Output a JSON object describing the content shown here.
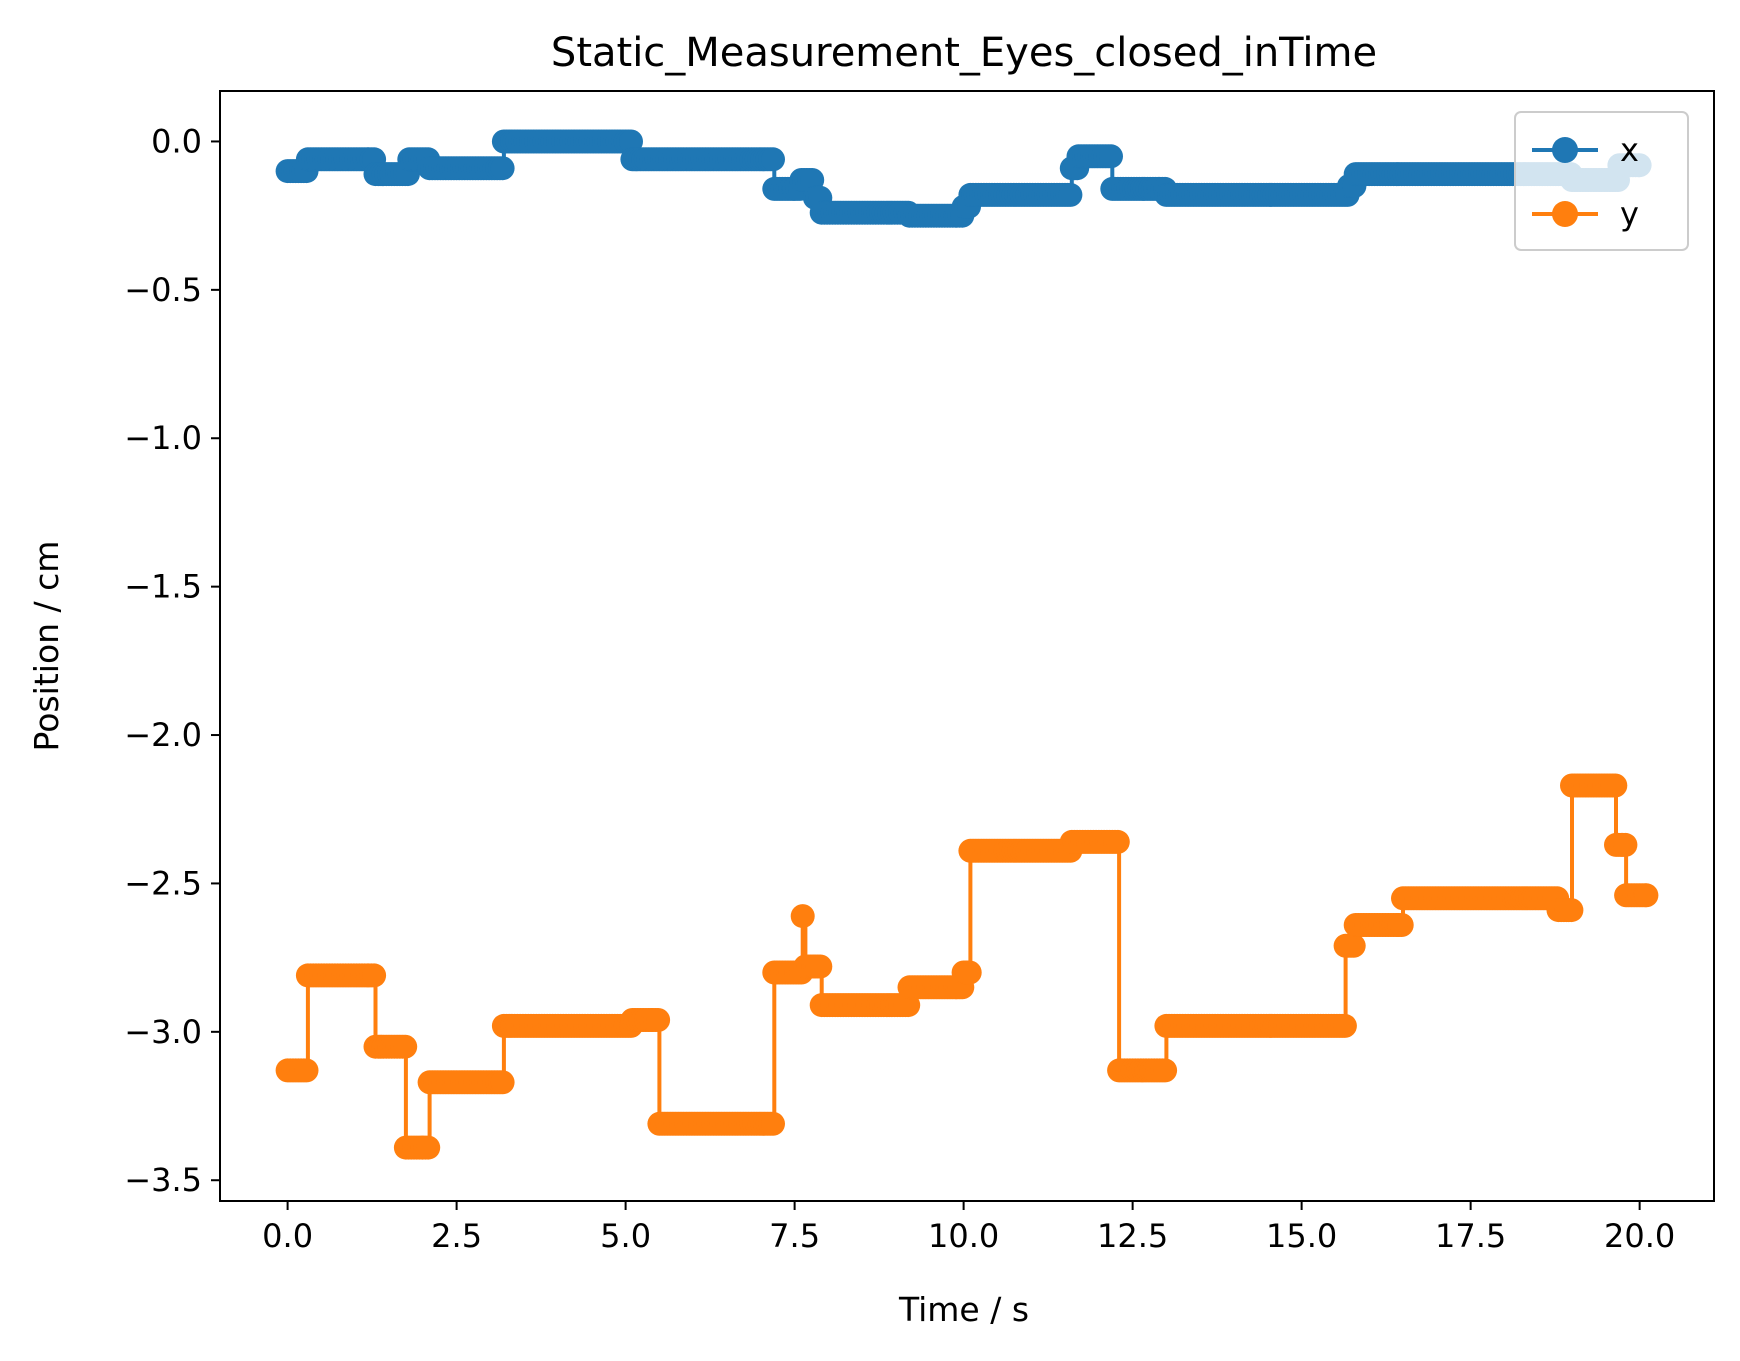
{
  "chart_data": {
    "type": "line",
    "title": "Static_Measurement_Eyes_closed_inTime",
    "xlabel": "Time / s",
    "ylabel": "Position / cm",
    "xlim": [
      -1.0,
      21.1
    ],
    "ylim": [
      -3.57,
      0.17
    ],
    "xticks": [
      0,
      2.5,
      5,
      7.5,
      10,
      12.5,
      15,
      17.5,
      20
    ],
    "xtick_labels": [
      "0.0",
      "2.5",
      "5.0",
      "7.5",
      "10.0",
      "12.5",
      "15.0",
      "17.5",
      "20.0"
    ],
    "yticks": [
      0,
      -0.5,
      -1.0,
      -1.5,
      -2.0,
      -2.5,
      -3.0,
      -3.5
    ],
    "ytick_labels": [
      "0.0",
      "−0.5",
      "−1.0",
      "−1.5",
      "−2.0",
      "−2.5",
      "−3.0",
      "−3.5"
    ],
    "grid": false,
    "legend_position": "top-right",
    "series": [
      {
        "name": "x",
        "color": "#1f77b4",
        "marker": "circle",
        "steps": [
          [
            0.0,
            -0.1
          ],
          [
            0.2,
            -0.1
          ],
          [
            0.3,
            -0.06
          ],
          [
            1.2,
            -0.06
          ],
          [
            1.3,
            -0.11
          ],
          [
            1.7,
            -0.11
          ],
          [
            1.8,
            -0.06
          ],
          [
            2.0,
            -0.06
          ],
          [
            2.1,
            -0.09
          ],
          [
            3.1,
            -0.09
          ],
          [
            3.2,
            0.0
          ],
          [
            5.0,
            0.0
          ],
          [
            5.1,
            -0.06
          ],
          [
            7.1,
            -0.06
          ],
          [
            7.2,
            -0.16
          ],
          [
            7.5,
            -0.16
          ],
          [
            7.6,
            -0.13
          ],
          [
            7.8,
            -0.19
          ],
          [
            7.9,
            -0.24
          ],
          [
            9.1,
            -0.24
          ],
          [
            9.2,
            -0.25
          ],
          [
            9.9,
            -0.25
          ],
          [
            10.0,
            -0.22
          ],
          [
            10.1,
            -0.18
          ],
          [
            11.5,
            -0.18
          ],
          [
            11.6,
            -0.09
          ],
          [
            11.7,
            -0.05
          ],
          [
            12.1,
            -0.05
          ],
          [
            12.2,
            -0.16
          ],
          [
            12.9,
            -0.16
          ],
          [
            13.0,
            -0.18
          ],
          [
            15.6,
            -0.18
          ],
          [
            15.7,
            -0.15
          ],
          [
            15.8,
            -0.11
          ],
          [
            18.9,
            -0.11
          ],
          [
            19.0,
            -0.13
          ],
          [
            19.6,
            -0.13
          ],
          [
            19.7,
            -0.08
          ],
          [
            20.0,
            -0.08
          ]
        ]
      },
      {
        "name": "y",
        "color": "#ff7f0e",
        "marker": "circle",
        "steps": [
          [
            0.0,
            -3.13
          ],
          [
            0.2,
            -3.13
          ],
          [
            0.3,
            -2.81
          ],
          [
            1.2,
            -2.81
          ],
          [
            1.3,
            -3.05
          ],
          [
            1.7,
            -3.05
          ],
          [
            1.75,
            -3.39
          ],
          [
            1.95,
            -3.39
          ],
          [
            2.0,
            -3.39
          ],
          [
            2.1,
            -3.17
          ],
          [
            3.1,
            -3.17
          ],
          [
            3.2,
            -2.98
          ],
          [
            5.0,
            -2.98
          ],
          [
            5.1,
            -2.96
          ],
          [
            5.4,
            -2.96
          ],
          [
            5.5,
            -3.31
          ],
          [
            7.1,
            -3.31
          ],
          [
            7.2,
            -2.8
          ],
          [
            7.6,
            -2.8
          ],
          [
            7.62,
            -2.61
          ],
          [
            7.66,
            -2.78
          ],
          [
            7.8,
            -2.78
          ],
          [
            7.9,
            -2.91
          ],
          [
            9.1,
            -2.91
          ],
          [
            9.2,
            -2.85
          ],
          [
            9.9,
            -2.85
          ],
          [
            10.0,
            -2.8
          ],
          [
            10.05,
            -2.8
          ],
          [
            10.1,
            -2.39
          ],
          [
            11.5,
            -2.39
          ],
          [
            11.6,
            -2.36
          ],
          [
            12.2,
            -2.36
          ],
          [
            12.3,
            -3.13
          ],
          [
            12.9,
            -3.13
          ],
          [
            13.0,
            -2.98
          ],
          [
            15.6,
            -2.98
          ],
          [
            15.65,
            -2.71
          ],
          [
            15.8,
            -2.64
          ],
          [
            16.4,
            -2.64
          ],
          [
            16.5,
            -2.55
          ],
          [
            18.7,
            -2.55
          ],
          [
            18.8,
            -2.59
          ],
          [
            18.95,
            -2.59
          ],
          [
            19.0,
            -2.17
          ],
          [
            19.6,
            -2.17
          ],
          [
            19.65,
            -2.37
          ],
          [
            19.75,
            -2.37
          ],
          [
            19.8,
            -2.54
          ],
          [
            20.1,
            -2.54
          ]
        ]
      }
    ]
  }
}
